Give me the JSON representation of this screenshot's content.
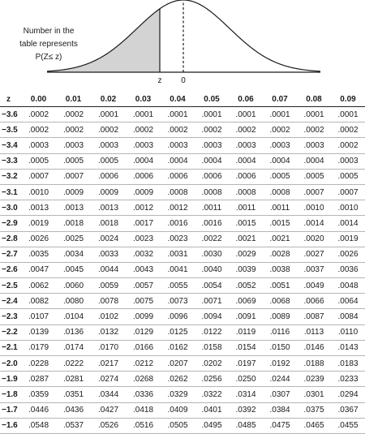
{
  "figure": {
    "caption_lines": [
      "Number in the",
      "table represents",
      "P(Z≤ z)"
    ],
    "label_z": "z",
    "label_zero": "0"
  },
  "table": {
    "headers": [
      "z",
      "0.00",
      "0.01",
      "0.02",
      "0.03",
      "0.04",
      "0.05",
      "0.06",
      "0.07",
      "0.08",
      "0.09"
    ],
    "rows": [
      [
        "−3.6",
        ".0002",
        ".0002",
        ".0001",
        ".0001",
        ".0001",
        ".0001",
        ".0001",
        ".0001",
        ".0001",
        ".0001"
      ],
      [
        "−3.5",
        ".0002",
        ".0002",
        ".0002",
        ".0002",
        ".0002",
        ".0002",
        ".0002",
        ".0002",
        ".0002",
        ".0002"
      ],
      [
        "−3.4",
        ".0003",
        ".0003",
        ".0003",
        ".0003",
        ".0003",
        ".0003",
        ".0003",
        ".0003",
        ".0003",
        ".0002"
      ],
      [
        "−3.3",
        ".0005",
        ".0005",
        ".0005",
        ".0004",
        ".0004",
        ".0004",
        ".0004",
        ".0004",
        ".0004",
        ".0003"
      ],
      [
        "−3.2",
        ".0007",
        ".0007",
        ".0006",
        ".0006",
        ".0006",
        ".0006",
        ".0006",
        ".0005",
        ".0005",
        ".0005"
      ],
      [
        "−3.1",
        ".0010",
        ".0009",
        ".0009",
        ".0009",
        ".0008",
        ".0008",
        ".0008",
        ".0008",
        ".0007",
        ".0007"
      ],
      [
        "−3.0",
        ".0013",
        ".0013",
        ".0013",
        ".0012",
        ".0012",
        ".0011",
        ".0011",
        ".0011",
        ".0010",
        ".0010"
      ],
      [
        "−2.9",
        ".0019",
        ".0018",
        ".0018",
        ".0017",
        ".0016",
        ".0016",
        ".0015",
        ".0015",
        ".0014",
        ".0014"
      ],
      [
        "−2.8",
        ".0026",
        ".0025",
        ".0024",
        ".0023",
        ".0023",
        ".0022",
        ".0021",
        ".0021",
        ".0020",
        ".0019"
      ],
      [
        "−2.7",
        ".0035",
        ".0034",
        ".0033",
        ".0032",
        ".0031",
        ".0030",
        ".0029",
        ".0028",
        ".0027",
        ".0026"
      ],
      [
        "−2.6",
        ".0047",
        ".0045",
        ".0044",
        ".0043",
        ".0041",
        ".0040",
        ".0039",
        ".0038",
        ".0037",
        ".0036"
      ],
      [
        "−2.5",
        ".0062",
        ".0060",
        ".0059",
        ".0057",
        ".0055",
        ".0054",
        ".0052",
        ".0051",
        ".0049",
        ".0048"
      ],
      [
        "−2.4",
        ".0082",
        ".0080",
        ".0078",
        ".0075",
        ".0073",
        ".0071",
        ".0069",
        ".0068",
        ".0066",
        ".0064"
      ],
      [
        "−2.3",
        ".0107",
        ".0104",
        ".0102",
        ".0099",
        ".0096",
        ".0094",
        ".0091",
        ".0089",
        ".0087",
        ".0084"
      ],
      [
        "−2.2",
        ".0139",
        ".0136",
        ".0132",
        ".0129",
        ".0125",
        ".0122",
        ".0119",
        ".0116",
        ".0113",
        ".0110"
      ],
      [
        "−2.1",
        ".0179",
        ".0174",
        ".0170",
        ".0166",
        ".0162",
        ".0158",
        ".0154",
        ".0150",
        ".0146",
        ".0143"
      ],
      [
        "−2.0",
        ".0228",
        ".0222",
        ".0217",
        ".0212",
        ".0207",
        ".0202",
        ".0197",
        ".0192",
        ".0188",
        ".0183"
      ],
      [
        "−1.9",
        ".0287",
        ".0281",
        ".0274",
        ".0268",
        ".0262",
        ".0256",
        ".0250",
        ".0244",
        ".0239",
        ".0233"
      ],
      [
        "−1.8",
        ".0359",
        ".0351",
        ".0344",
        ".0336",
        ".0329",
        ".0322",
        ".0314",
        ".0307",
        ".0301",
        ".0294"
      ],
      [
        "−1.7",
        ".0446",
        ".0436",
        ".0427",
        ".0418",
        ".0409",
        ".0401",
        ".0392",
        ".0384",
        ".0375",
        ".0367"
      ],
      [
        "−1.6",
        ".0548",
        ".0537",
        ".0526",
        ".0516",
        ".0505",
        ".0495",
        ".0485",
        ".0475",
        ".0465",
        ".0455"
      ]
    ]
  }
}
